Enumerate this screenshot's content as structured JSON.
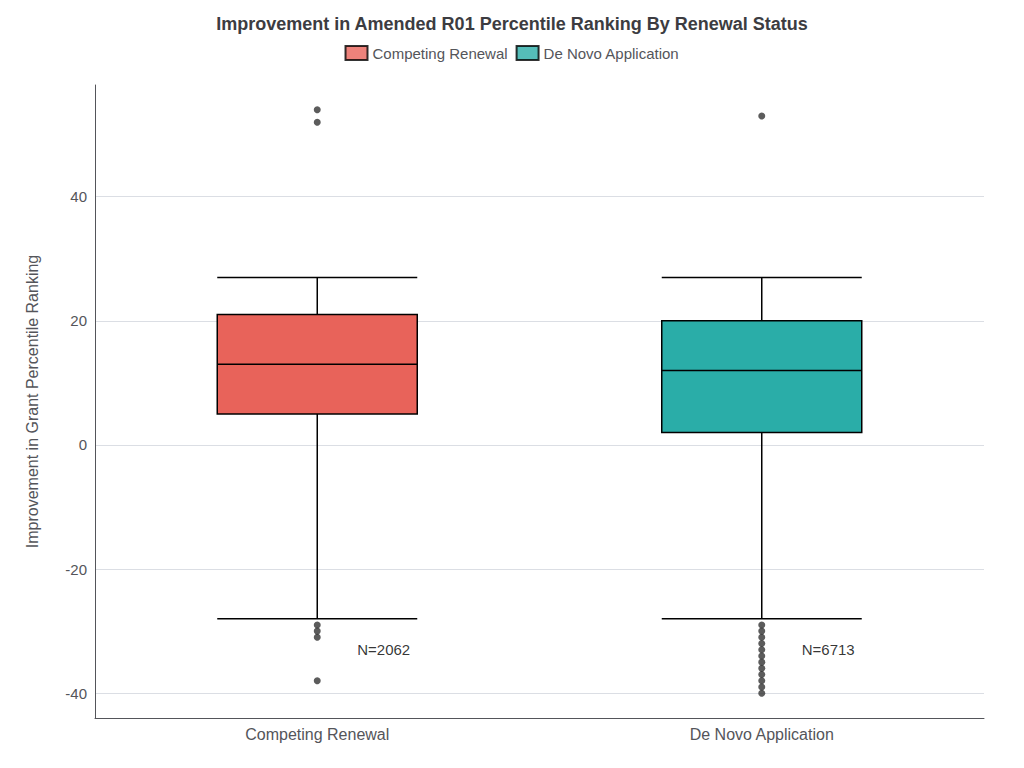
{
  "chart_data": {
    "type": "box",
    "title": "Improvement in Amended R01 Percentile Ranking By Renewal Status",
    "ylabel": "Improvement in Grant Percentile Ranking",
    "categories": [
      "Competing Renewal",
      "De Novo Application"
    ],
    "series": [
      {
        "name": "Competing Renewal",
        "color": "#E8635A",
        "whislo": -28,
        "q1": 5,
        "median": 13,
        "q3": 21,
        "whishi": 27,
        "fliers": [
          54,
          52,
          -29,
          -30,
          -31,
          -38
        ]
      },
      {
        "name": "De Novo Application",
        "color": "#2AADA8",
        "whislo": -28,
        "q1": 2,
        "median": 12,
        "q3": 20,
        "whishi": 27,
        "fliers": [
          53,
          -29,
          -30,
          -31,
          -32,
          -33,
          -34,
          -35,
          -36,
          -37,
          -38,
          -39,
          -40
        ]
      }
    ],
    "annotations": [
      {
        "text": "N=2062",
        "category": "Competing Renewal",
        "y": -33
      },
      {
        "text": "N=6713",
        "category": "De Novo Application",
        "y": -33
      }
    ],
    "ylim": [
      -44,
      58
    ],
    "yticks": [
      -40,
      -20,
      0,
      20,
      40
    ],
    "grid": true,
    "legend": "top"
  }
}
